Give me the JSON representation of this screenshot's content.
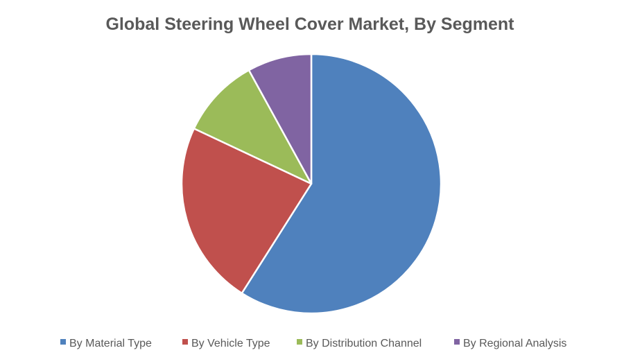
{
  "chart_data": {
    "type": "pie",
    "title": "Global Steering Wheel Cover Market, By Segment",
    "categories": [
      "By Material Type",
      "By Vehicle Type",
      "By Distribution Channel",
      "By Regional Analysis"
    ],
    "values": [
      59,
      23,
      10,
      8
    ],
    "colors": [
      "#4f81bd",
      "#c0504d",
      "#9bbb59",
      "#8064a2"
    ],
    "legend_position": "bottom",
    "start_angle_deg": 0,
    "direction": "clockwise"
  }
}
